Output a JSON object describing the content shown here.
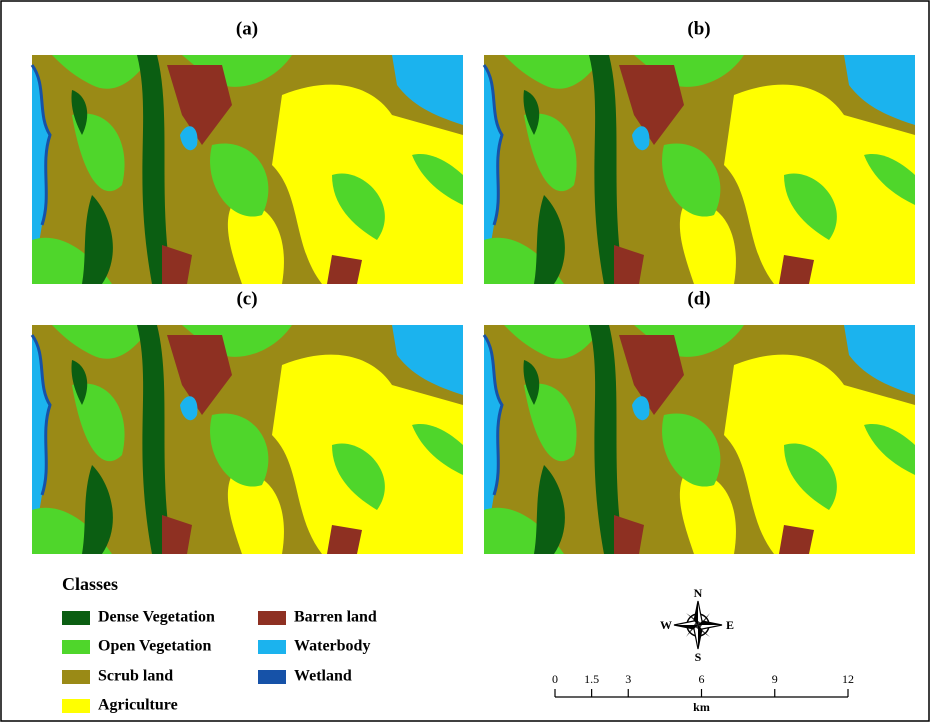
{
  "panels": [
    {
      "label": "(a)"
    },
    {
      "label": "(b)"
    },
    {
      "label": "(c)"
    },
    {
      "label": "(d)"
    }
  ],
  "legend": {
    "title": "Classes",
    "items": [
      {
        "name": "Dense Vegetation",
        "color": "#0b5e12"
      },
      {
        "name": "Open Vegetation",
        "color": "#4fd62b"
      },
      {
        "name": "Scrub land",
        "color": "#9a8a16"
      },
      {
        "name": "Agriculture",
        "color": "#ffff00"
      },
      {
        "name": "Barren land",
        "color": "#8e3022"
      },
      {
        "name": "Waterbody",
        "color": "#1bb3ee"
      },
      {
        "name": "Wetland",
        "color": "#1652a8"
      }
    ]
  },
  "compass": {
    "north": "N",
    "east": "E",
    "south": "S",
    "west": "W"
  },
  "scale_bar": {
    "ticks": [
      0,
      1.5,
      3,
      6,
      9,
      12
    ],
    "unit": "km"
  }
}
